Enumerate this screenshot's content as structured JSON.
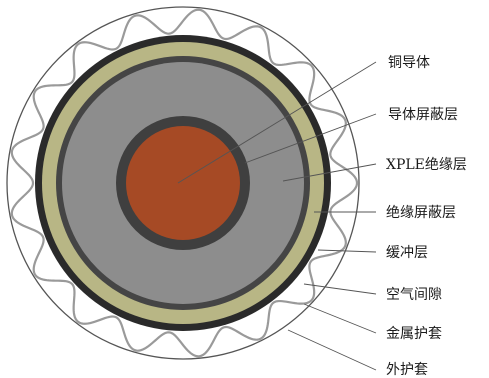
{
  "diagram": {
    "labels": [
      "铜导体",
      "导体屏蔽层",
      "XPLE绝缘层",
      "绝缘屏蔽层",
      "缓冲层",
      "空气间隙",
      "金属护套",
      "外护套"
    ],
    "colors": {
      "copper": "#a64a25",
      "conductor_screen": "#3f3f3f",
      "insulation": "#8d8d8d",
      "insulation_screen": "#454545",
      "buffer": "#b8b685",
      "inner_dark_ring": "#2a2a2a",
      "metal_sheath": "#9a9a9a",
      "outer_sheath": "#ffffff",
      "outline": "#555555"
    }
  }
}
